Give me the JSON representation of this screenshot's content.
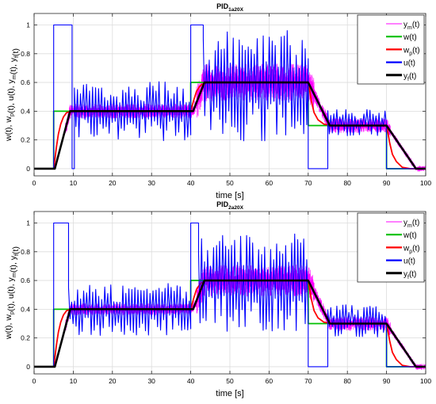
{
  "chart_data": [
    {
      "type": "line",
      "title": "PID",
      "title_sub": "1a20X",
      "xlabel": "time [s]",
      "ylabel": "w(t), w_p(t), u(t), y_m(t), y_f(t)",
      "xlim": [
        0,
        100
      ],
      "ylim": [
        -0.05,
        1.08
      ],
      "xticks": [
        "0",
        "10",
        "20",
        "30",
        "40",
        "50",
        "60",
        "70",
        "80",
        "90",
        "100"
      ],
      "yticks": [
        "0",
        "0.2",
        "0.4",
        "0.6",
        "0.8",
        "1"
      ],
      "grid": true,
      "legend_position": "top-right",
      "series": [
        {
          "name": "ym(t)",
          "legend_base": "y",
          "legend_sub": "m",
          "legend_tail": "(t)",
          "color": "#ff00ff",
          "segments": [
            {
              "x0": 0,
              "x1": 8.0,
              "type": "follow",
              "ref": "yf",
              "amp": 0.0
            },
            {
              "x0": 8.0,
              "x1": 41.5,
              "type": "noise",
              "base_ref": "yf",
              "amp": 0.1
            },
            {
              "x0": 41.5,
              "x1": 71.5,
              "type": "noise",
              "base_ref": "yf",
              "amp": 0.26
            },
            {
              "x0": 71.5,
              "x1": 91.0,
              "type": "noise",
              "base_ref": "yf",
              "amp": 0.1
            },
            {
              "x0": 91.0,
              "x1": 100,
              "type": "noise",
              "base_ref": "yf",
              "amp": 0.04
            }
          ]
        },
        {
          "name": "w(t)",
          "legend_base": "w",
          "legend_sub": "",
          "legend_tail": "(t)",
          "color": "#00c000",
          "x": [
            0,
            5,
            5,
            40,
            40,
            70,
            70,
            90,
            90,
            100
          ],
          "y": [
            0,
            0,
            0.4,
            0.4,
            0.6,
            0.6,
            0.3,
            0.3,
            0,
            0
          ]
        },
        {
          "name": "wp(t)",
          "legend_base": "w",
          "legend_sub": "p",
          "legend_tail": "(t)",
          "color": "#ff0000",
          "x": [
            0,
            5,
            5.3,
            5.7,
            6.2,
            6.8,
            7.5,
            8.3,
            9.5,
            40,
            40.3,
            40.8,
            41.5,
            42.5,
            44,
            70,
            70.3,
            70.8,
            71.5,
            72.5,
            74,
            76,
            90,
            90.3,
            90.8,
            91.5,
            92.5,
            94,
            96,
            100
          ],
          "y": [
            0,
            0,
            0.06,
            0.15,
            0.24,
            0.31,
            0.36,
            0.39,
            0.4,
            0.4,
            0.43,
            0.48,
            0.54,
            0.58,
            0.6,
            0.6,
            0.56,
            0.47,
            0.39,
            0.34,
            0.31,
            0.3,
            0.3,
            0.26,
            0.18,
            0.1,
            0.05,
            0.01,
            0,
            0
          ]
        },
        {
          "name": "u(t)",
          "legend_base": "u",
          "legend_sub": "",
          "legend_tail": "(t)",
          "color": "#0000ff",
          "segments": [
            {
              "x0": 0,
              "x1": 5,
              "type": "const",
              "value": 0
            },
            {
              "x0": 5,
              "x1": 9.7,
              "type": "const",
              "value": 1
            },
            {
              "x0": 9.7,
              "x1": 10.3,
              "type": "const",
              "value": 0
            },
            {
              "x0": 10.3,
              "x1": 40,
              "type": "osc",
              "center": 0.4,
              "amp": 0.18
            },
            {
              "x0": 40,
              "x1": 43.2,
              "type": "const",
              "value": 1
            },
            {
              "x0": 43.2,
              "x1": 70,
              "type": "osc",
              "center": 0.58,
              "amp": 0.34
            },
            {
              "x0": 70,
              "x1": 75,
              "type": "const",
              "value": 0
            },
            {
              "x0": 75,
              "x1": 90,
              "type": "osc",
              "center": 0.32,
              "amp": 0.08
            },
            {
              "x0": 90,
              "x1": 100,
              "type": "const",
              "value": 0
            }
          ]
        },
        {
          "name": "yf(t)",
          "legend_base": "y",
          "legend_sub": "f",
          "legend_tail": "(t)",
          "color": "#000000",
          "x": [
            0,
            5.3,
            9.2,
            40.6,
            43.5,
            70,
            75.5,
            90,
            97.5,
            100
          ],
          "y": [
            0,
            0,
            0.4,
            0.4,
            0.6,
            0.6,
            0.3,
            0.3,
            0,
            0
          ]
        }
      ]
    },
    {
      "type": "line",
      "title": "PID",
      "title_sub": "2a20X",
      "xlabel": "time [s]",
      "ylabel": "w(t), w_p(t), u(t), y_m(t), y_f(t)",
      "xlim": [
        0,
        100
      ],
      "ylim": [
        -0.05,
        1.08
      ],
      "xticks": [
        "0",
        "10",
        "20",
        "30",
        "40",
        "50",
        "60",
        "70",
        "80",
        "90",
        "100"
      ],
      "yticks": [
        "0",
        "0.2",
        "0.4",
        "0.6",
        "0.8",
        "1"
      ],
      "grid": true,
      "legend_position": "top-right",
      "series": [
        {
          "name": "ym(t)",
          "legend_base": "y",
          "legend_sub": "m",
          "legend_tail": "(t)",
          "color": "#ff00ff",
          "segments": [
            {
              "x0": 0,
              "x1": 8.0,
              "type": "follow",
              "ref": "yf",
              "amp": 0.0
            },
            {
              "x0": 8.0,
              "x1": 41.5,
              "type": "noise",
              "base_ref": "yf",
              "amp": 0.08
            },
            {
              "x0": 41.5,
              "x1": 71.5,
              "type": "noise",
              "base_ref": "yf",
              "amp": 0.22
            },
            {
              "x0": 71.5,
              "x1": 91.0,
              "type": "noise",
              "base_ref": "yf",
              "amp": 0.1
            },
            {
              "x0": 91.0,
              "x1": 100,
              "type": "noise",
              "base_ref": "yf",
              "amp": 0.04
            }
          ]
        },
        {
          "name": "w(t)",
          "legend_base": "w",
          "legend_sub": "",
          "legend_tail": "(t)",
          "color": "#00c000",
          "x": [
            0,
            5,
            5,
            40,
            40,
            70,
            70,
            90,
            90,
            100
          ],
          "y": [
            0,
            0,
            0.4,
            0.4,
            0.6,
            0.6,
            0.3,
            0.3,
            0,
            0
          ]
        },
        {
          "name": "wp(t)",
          "legend_base": "w",
          "legend_sub": "p",
          "legend_tail": "(t)",
          "color": "#ff0000",
          "x": [
            0,
            5,
            5.3,
            5.7,
            6.2,
            6.8,
            7.5,
            8.3,
            9.5,
            40,
            40.3,
            40.8,
            41.5,
            42.5,
            44,
            70,
            70.3,
            70.8,
            71.5,
            72.5,
            74,
            76,
            90,
            90.3,
            90.8,
            91.5,
            92.5,
            94,
            96,
            100
          ],
          "y": [
            0,
            0,
            0.06,
            0.15,
            0.24,
            0.31,
            0.36,
            0.39,
            0.4,
            0.4,
            0.43,
            0.48,
            0.54,
            0.58,
            0.6,
            0.6,
            0.56,
            0.47,
            0.39,
            0.34,
            0.31,
            0.3,
            0.3,
            0.26,
            0.18,
            0.1,
            0.05,
            0.01,
            0,
            0
          ]
        },
        {
          "name": "u(t)",
          "legend_base": "u",
          "legend_sub": "",
          "legend_tail": "(t)",
          "color": "#0000ff",
          "segments": [
            {
              "x0": 0,
              "x1": 5,
              "type": "const",
              "value": 0
            },
            {
              "x0": 5,
              "x1": 8.8,
              "type": "const",
              "value": 1
            },
            {
              "x0": 8.8,
              "x1": 40,
              "type": "osc",
              "center": 0.4,
              "amp": 0.16
            },
            {
              "x0": 40,
              "x1": 42.0,
              "type": "const",
              "value": 1
            },
            {
              "x0": 42.0,
              "x1": 70,
              "type": "osc",
              "center": 0.58,
              "amp": 0.3
            },
            {
              "x0": 70,
              "x1": 75,
              "type": "const",
              "value": 0
            },
            {
              "x0": 75,
              "x1": 90,
              "type": "osc",
              "center": 0.32,
              "amp": 0.1
            },
            {
              "x0": 90,
              "x1": 100,
              "type": "const",
              "value": 0
            }
          ]
        },
        {
          "name": "yf(t)",
          "legend_base": "y",
          "legend_sub": "f",
          "legend_tail": "(t)",
          "color": "#000000",
          "x": [
            0,
            5.3,
            9.2,
            40.6,
            43.5,
            70,
            75.5,
            90,
            97.5,
            100
          ],
          "y": [
            0,
            0,
            0.4,
            0.4,
            0.6,
            0.6,
            0.3,
            0.3,
            0,
            0
          ]
        }
      ]
    }
  ]
}
